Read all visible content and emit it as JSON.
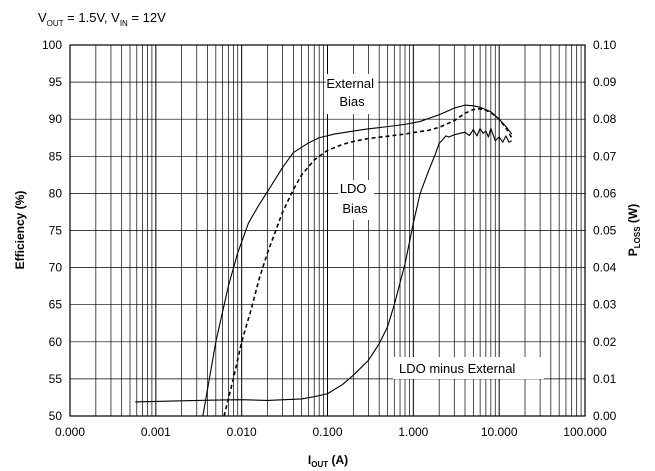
{
  "chart_data": {
    "type": "line",
    "title_parts": {
      "v1": "V",
      "v1_sub": "OUT",
      "v1_rest": " = 1.5V, ",
      "v2": "V",
      "v2_sub": "IN",
      "v2_rest": " = 12V"
    },
    "xlabel_main": "I",
    "xlabel_sub": "OUT",
    "xlabel_rest": " (A)",
    "ylabel_left": "Efficiency (%)",
    "ylabel_right_main": "P",
    "ylabel_right_sub": "LOSS",
    "ylabel_right_rest": " (W)",
    "x_scale": "log",
    "xlim": [
      0.0001,
      100
    ],
    "ylim_left": [
      50,
      100
    ],
    "ylim_right": [
      0,
      0.1
    ],
    "x_tick_values": [
      0.0001,
      0.001,
      0.01,
      0.1,
      1,
      10,
      100
    ],
    "x_tick_labels": [
      "0.000",
      "0.001",
      "0.010",
      "0.100",
      "1.000",
      "10.000",
      "100.000"
    ],
    "y_left_ticks": [
      "50",
      "55",
      "60",
      "65",
      "70",
      "75",
      "80",
      "85",
      "90",
      "95",
      "100"
    ],
    "y_right_ticks": [
      "0.00",
      "0.01",
      "0.02",
      "0.03",
      "0.04",
      "0.05",
      "0.06",
      "0.07",
      "0.08",
      "0.09",
      "0.10"
    ],
    "grid": true,
    "annotations": {
      "external_line1": "External",
      "external_line2": "Bias",
      "ldo_line1": "LDO",
      "ldo_line2": "Bias",
      "diff": "LDO minus External"
    },
    "series": [
      {
        "key": "external",
        "style": "solid",
        "axis": "left",
        "x": [
          0.00353,
          0.005,
          0.007,
          0.009,
          0.012,
          0.016,
          0.022,
          0.03,
          0.04,
          0.06,
          0.08,
          0.12,
          0.2,
          0.3,
          0.5,
          0.8,
          1.2,
          2.0,
          3.0,
          4.0,
          5.0,
          6.0,
          8.0,
          10.0,
          12.0,
          14.0
        ],
        "y": [
          50,
          60,
          67.5,
          72,
          76,
          78.5,
          81,
          83.5,
          85.5,
          86.8,
          87.5,
          88.0,
          88.4,
          88.7,
          89.0,
          89.3,
          89.7,
          90.6,
          91.5,
          91.9,
          91.8,
          91.6,
          91.0,
          90.0,
          89.0,
          88.0
        ]
      },
      {
        "key": "ldo",
        "style": "dashed",
        "axis": "left",
        "x": [
          0.00624,
          0.008,
          0.01,
          0.013,
          0.016,
          0.02,
          0.025,
          0.03,
          0.04,
          0.05,
          0.07,
          0.1,
          0.15,
          0.2,
          0.3,
          0.5,
          0.8,
          1.0,
          1.5,
          2.0,
          3.0,
          4.0,
          5.0,
          6.0,
          7.0,
          8.0,
          10.0,
          12.0,
          14.0
        ],
        "y": [
          50,
          55,
          60,
          64.5,
          68.5,
          72,
          75,
          77.5,
          80.5,
          82.5,
          84.5,
          85.8,
          86.6,
          87.0,
          87.4,
          87.7,
          88.0,
          88.2,
          88.5,
          88.9,
          89.8,
          90.8,
          91.3,
          91.4,
          91.2,
          90.9,
          90.0,
          88.8,
          87.5
        ]
      },
      {
        "key": "difference",
        "style": "solid",
        "axis": "right",
        "x": [
          0.000575,
          0.002,
          0.005,
          0.01,
          0.02,
          0.05,
          0.07,
          0.1,
          0.15,
          0.2,
          0.3,
          0.4,
          0.5,
          0.6,
          0.8,
          1.0,
          1.2,
          1.5,
          1.8,
          2.0,
          2.2,
          2.4,
          2.6,
          3.0,
          3.5,
          4.0,
          4.5,
          5.0,
          5.5,
          6.0,
          6.5,
          7.0,
          7.5,
          8.0,
          9.0,
          10.0,
          11.0,
          12.0,
          13.0,
          14.0
        ],
        "y": [
          0.0038,
          0.0041,
          0.0043,
          0.0044,
          0.0042,
          0.0046,
          0.0052,
          0.006,
          0.0085,
          0.011,
          0.015,
          0.0195,
          0.024,
          0.03,
          0.041,
          0.052,
          0.06,
          0.066,
          0.0705,
          0.0735,
          0.0745,
          0.0755,
          0.0752,
          0.0758,
          0.0762,
          0.0765,
          0.0756,
          0.0772,
          0.0755,
          0.0775,
          0.0762,
          0.0768,
          0.0752,
          0.0775,
          0.0742,
          0.0752,
          0.0738,
          0.0755,
          0.0738,
          0.0742
        ]
      }
    ]
  }
}
